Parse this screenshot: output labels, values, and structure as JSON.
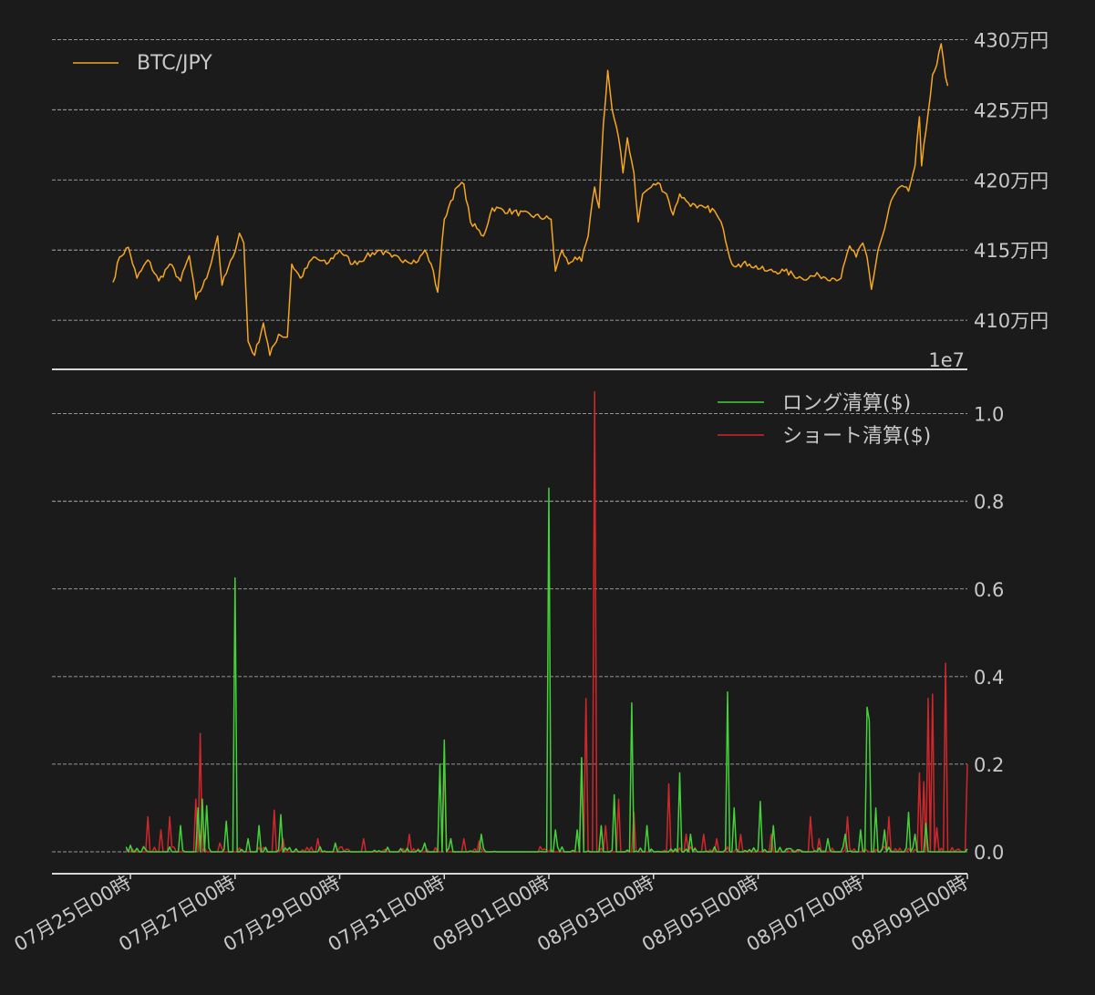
{
  "colors": {
    "background": "#1b1b1b",
    "text": "#c8c8c8",
    "price": "#f5a623",
    "long": "#44d13a",
    "short": "#d0272c",
    "grid": "#bdbdbd"
  },
  "chart_data": [
    {
      "type": "line",
      "panel": "top",
      "grid": true,
      "legend_position": "top-left",
      "ylim": [
        4065000,
        4310000
      ],
      "y_ticks": [
        {
          "value": 4100000,
          "label": "410万円"
        },
        {
          "value": 4150000,
          "label": "415万円"
        },
        {
          "value": 4200000,
          "label": "420万円"
        },
        {
          "value": 4250000,
          "label": "425万円"
        },
        {
          "value": 4300000,
          "label": "430万円"
        }
      ],
      "offset_label": "1e7",
      "series": [
        {
          "name": "BTC/JPY",
          "anchors": [
            [
              "07-24 16:00",
              4127000
            ],
            [
              "07-24 19:00",
              4145000
            ],
            [
              "07-24 23:00",
              4152000
            ],
            [
              "07-25 03:00",
              4130000
            ],
            [
              "07-25 08:00",
              4143000
            ],
            [
              "07-25 13:00",
              4128000
            ],
            [
              "07-25 18:00",
              4140000
            ],
            [
              "07-25 23:00",
              4128000
            ],
            [
              "07-26 03:00",
              4146000
            ],
            [
              "07-26 06:00",
              4115000
            ],
            [
              "07-26 11:00",
              4130000
            ],
            [
              "07-26 16:00",
              4160000
            ],
            [
              "07-26 18:00",
              4125000
            ],
            [
              "07-26 23:00",
              4145000
            ],
            [
              "07-27 02:00",
              4162000
            ],
            [
              "07-27 04:00",
              4155000
            ],
            [
              "07-27 06:00",
              4085000
            ],
            [
              "07-27 09:00",
              4075000
            ],
            [
              "07-27 13:00",
              4098000
            ],
            [
              "07-27 16:00",
              4075000
            ],
            [
              "07-27 20:00",
              4090000
            ],
            [
              "07-28 00:00",
              4088000
            ],
            [
              "07-28 02:00",
              4140000
            ],
            [
              "07-28 06:00",
              4130000
            ],
            [
              "07-28 12:00",
              4145000
            ],
            [
              "07-28 18:00",
              4140000
            ],
            [
              "07-29 00:00",
              4150000
            ],
            [
              "07-29 06:00",
              4140000
            ],
            [
              "07-29 12:00",
              4145000
            ],
            [
              "07-29 18:00",
              4150000
            ],
            [
              "07-30 00:00",
              4145000
            ],
            [
              "07-30 06:00",
              4143000
            ],
            [
              "07-30 12:00",
              4142000
            ],
            [
              "07-30 15:00",
              4150000
            ],
            [
              "07-30 18:00",
              4140000
            ],
            [
              "07-30 21:00",
              4120000
            ],
            [
              "07-31 00:00",
              4172000
            ],
            [
              "07-31 03:00",
              4185000
            ],
            [
              "07-31 06:00",
              4195000
            ],
            [
              "07-31 09:00",
              4197000
            ],
            [
              "07-31 12:00",
              4170000
            ],
            [
              "07-31 18:00",
              4160000
            ],
            [
              "07-31 22:00",
              4180000
            ],
            [
              "08-01 01:00",
              4172000
            ],
            [
              "08-01 03:00",
              4135000
            ],
            [
              "08-01 06:00",
              4150000
            ],
            [
              "08-01 09:00",
              4140000
            ],
            [
              "08-01 12:00",
              4145000
            ],
            [
              "08-01 15:00",
              4142000
            ],
            [
              "08-01 18:00",
              4160000
            ],
            [
              "08-01 21:00",
              4195000
            ],
            [
              "08-01 23:00",
              4180000
            ],
            [
              "08-02 01:00",
              4240000
            ],
            [
              "08-02 03:00",
              4278000
            ],
            [
              "08-02 05:00",
              4250000
            ],
            [
              "08-02 08:00",
              4230000
            ],
            [
              "08-02 10:00",
              4205000
            ],
            [
              "08-02 12:00",
              4230000
            ],
            [
              "08-02 15:00",
              4205000
            ],
            [
              "08-02 17:00",
              4170000
            ],
            [
              "08-02 19:00",
              4190000
            ],
            [
              "08-02 23:00",
              4195000
            ],
            [
              "08-03 02:00",
              4198000
            ],
            [
              "08-03 06:00",
              4190000
            ],
            [
              "08-03 09:00",
              4175000
            ],
            [
              "08-03 12:00",
              4190000
            ],
            [
              "08-03 15:00",
              4185000
            ],
            [
              "08-03 20:00",
              4180000
            ],
            [
              "08-04 00:00",
              4180000
            ],
            [
              "08-04 04:00",
              4178000
            ],
            [
              "08-04 08:00",
              4165000
            ],
            [
              "08-04 12:00",
              4140000
            ],
            [
              "08-04 15:00",
              4140000
            ],
            [
              "08-04 20:00",
              4140000
            ],
            [
              "08-05 04:00",
              4135000
            ],
            [
              "08-05 12:00",
              4135000
            ],
            [
              "08-05 20:00",
              4130000
            ],
            [
              "08-06 04:00",
              4132000
            ],
            [
              "08-06 10:00",
              4130000
            ],
            [
              "08-06 14:00",
              4130000
            ],
            [
              "08-06 18:00",
              4153000
            ],
            [
              "08-06 21:00",
              4145000
            ],
            [
              "08-07 00:00",
              4155000
            ],
            [
              "08-07 02:00",
              4145000
            ],
            [
              "08-07 04:00",
              4122000
            ],
            [
              "08-07 07:00",
              4150000
            ],
            [
              "08-07 10:00",
              4165000
            ],
            [
              "08-07 13:00",
              4185000
            ],
            [
              "08-07 17:00",
              4195000
            ],
            [
              "08-07 21:00",
              4192000
            ],
            [
              "08-08 00:00",
              4210000
            ],
            [
              "08-08 02:00",
              4245000
            ],
            [
              "08-08 03:00",
              4210000
            ],
            [
              "08-08 05:00",
              4235000
            ],
            [
              "08-08 08:00",
              4275000
            ],
            [
              "08-08 10:00",
              4282000
            ],
            [
              "08-08 12:00",
              4297000
            ],
            [
              "08-08 14:00",
              4273000
            ],
            [
              "08-08 15:00",
              4267000
            ]
          ]
        }
      ]
    },
    {
      "type": "line",
      "panel": "bottom",
      "grid": true,
      "legend_position": "top-right",
      "ylim": [
        -0.05,
        1.07
      ],
      "y_ticks": [
        {
          "value": 0.0,
          "label": "0.0"
        },
        {
          "value": 0.2,
          "label": "0.2"
        },
        {
          "value": 0.4,
          "label": "0.4"
        },
        {
          "value": 0.6,
          "label": "0.6"
        },
        {
          "value": 0.8,
          "label": "0.8"
        },
        {
          "value": 1.0,
          "label": "1.0"
        }
      ],
      "offset_label": "1e7",
      "x_ticks": [
        {
          "value": "07-25 00:00",
          "label": "07月25日00時"
        },
        {
          "value": "07-27 00:00",
          "label": "07月27日00時"
        },
        {
          "value": "07-29 00:00",
          "label": "07月29日00時"
        },
        {
          "value": "07-31 00:00",
          "label": "07月31日00時"
        },
        {
          "value": "08-01 00:00",
          "label": "08月01日00時"
        },
        {
          "value": "08-03 00:00",
          "label": "08月03日00時"
        },
        {
          "value": "08-05 00:00",
          "label": "08月05日00時"
        },
        {
          "value": "08-07 00:00",
          "label": "08月07日00時"
        },
        {
          "value": "08-09 00:00",
          "label": "08月09日00時"
        }
      ],
      "series": [
        {
          "name": "ロング清算($)",
          "spikes": [
            [
              "07-25 00:00",
              0.015
            ],
            [
              "07-25 23:00",
              0.06
            ],
            [
              "07-26 07:00",
              0.1
            ],
            [
              "07-26 09:00",
              0.12
            ],
            [
              "07-26 11:00",
              0.105
            ],
            [
              "07-26 20:00",
              0.07
            ],
            [
              "07-27 00:00",
              0.625
            ],
            [
              "07-27 06:00",
              0.03
            ],
            [
              "07-27 11:00",
              0.06
            ],
            [
              "07-27 21:00",
              0.085
            ],
            [
              "07-28 22:00",
              0.02
            ],
            [
              "07-30 15:00",
              0.02
            ],
            [
              "07-30 22:00",
              0.2
            ],
            [
              "07-31 00:00",
              0.255
            ],
            [
              "07-31 03:00",
              0.03
            ],
            [
              "07-31 17:00",
              0.04
            ],
            [
              "08-01 00:00",
              0.83
            ],
            [
              "08-01 03:00",
              0.05
            ],
            [
              "08-01 13:00",
              0.05
            ],
            [
              "08-01 15:00",
              0.215
            ],
            [
              "08-02 00:00",
              0.06
            ],
            [
              "08-02 06:00",
              0.13
            ],
            [
              "08-02 14:00",
              0.34
            ],
            [
              "08-02 21:00",
              0.06
            ],
            [
              "08-03 12:00",
              0.18
            ],
            [
              "08-03 17:00",
              0.04
            ],
            [
              "08-04 10:00",
              0.365
            ],
            [
              "08-04 13:00",
              0.1
            ],
            [
              "08-05 01:00",
              0.115
            ],
            [
              "08-05 07:00",
              0.06
            ],
            [
              "08-06 08:00",
              0.03
            ],
            [
              "08-06 16:00",
              0.04
            ],
            [
              "08-06 23:00",
              0.05
            ],
            [
              "08-07 02:00",
              0.33
            ],
            [
              "08-07 03:00",
              0.3
            ],
            [
              "08-07 06:00",
              0.1
            ],
            [
              "08-07 10:00",
              0.05
            ],
            [
              "08-07 21:00",
              0.09
            ],
            [
              "08-08 00:00",
              0.04
            ],
            [
              "08-08 05:00",
              0.065
            ]
          ]
        },
        {
          "name": "ショート清算($)",
          "spikes": [
            [
              "07-25 08:00",
              0.08
            ],
            [
              "07-25 14:00",
              0.05
            ],
            [
              "07-25 18:00",
              0.08
            ],
            [
              "07-26 06:00",
              0.12
            ],
            [
              "07-26 08:00",
              0.27
            ],
            [
              "07-26 17:00",
              0.02
            ],
            [
              "07-27 11:00",
              0.01
            ],
            [
              "07-27 18:00",
              0.095
            ],
            [
              "07-27 22:00",
              0.03
            ],
            [
              "07-28 09:00",
              0.01
            ],
            [
              "07-28 14:00",
              0.03
            ],
            [
              "07-29 00:00",
              0.01
            ],
            [
              "07-29 11:00",
              0.03
            ],
            [
              "07-30 08:00",
              0.04
            ],
            [
              "07-31 00:00",
              0.215
            ],
            [
              "07-31 09:00",
              0.03
            ],
            [
              "07-31 16:00",
              0.025
            ],
            [
              "08-01 15:00",
              0.19
            ],
            [
              "08-01 17:00",
              0.35
            ],
            [
              "08-01 21:00",
              1.05
            ],
            [
              "08-02 02:00",
              0.06
            ],
            [
              "08-02 08:00",
              0.12
            ],
            [
              "08-02 15:00",
              0.09
            ],
            [
              "08-03 07:00",
              0.155
            ],
            [
              "08-03 15:00",
              0.04
            ],
            [
              "08-03 23:00",
              0.04
            ],
            [
              "08-04 05:00",
              0.03
            ],
            [
              "08-04 16:00",
              0.04
            ],
            [
              "08-05 06:00",
              0.04
            ],
            [
              "08-06 00:00",
              0.08
            ],
            [
              "08-06 04:00",
              0.03
            ],
            [
              "08-06 17:00",
              0.08
            ],
            [
              "08-07 12:00",
              0.08
            ],
            [
              "08-08 02:00",
              0.18
            ],
            [
              "08-08 04:00",
              0.16
            ],
            [
              "08-08 06:00",
              0.35
            ],
            [
              "08-08 08:00",
              0.36
            ],
            [
              "08-08 10:00",
              0.055
            ],
            [
              "08-08 14:00",
              0.43
            ],
            [
              "08-09 00:00",
              0.2
            ]
          ]
        }
      ]
    }
  ]
}
